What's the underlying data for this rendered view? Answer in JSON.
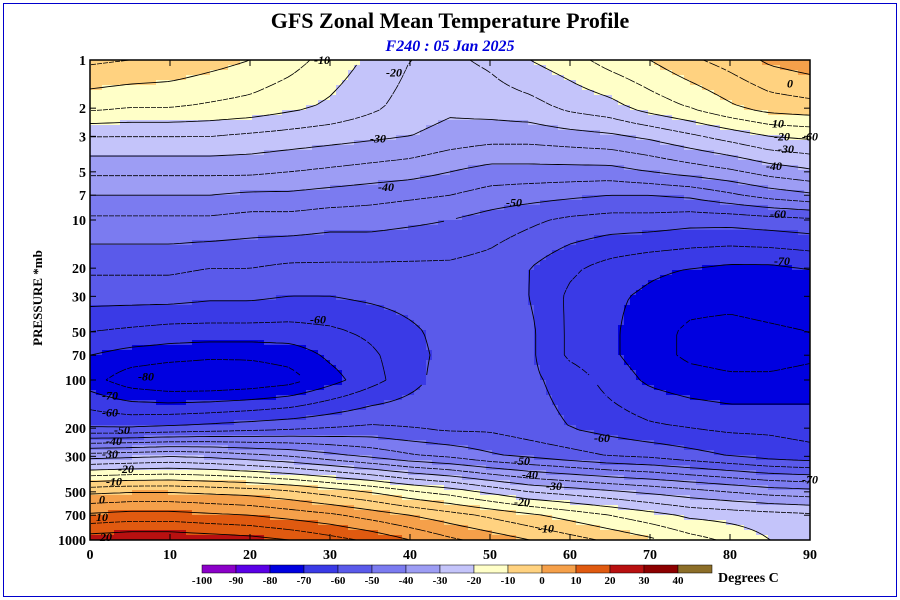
{
  "title": "GFS Zonal Mean Temperature Profile",
  "subtitle": "F240 : 05 Jan 2025",
  "colorbar": {
    "unit_label": "Degrees C",
    "ticks": [
      "-100",
      "-90",
      "-80",
      "-70",
      "-60",
      "-50",
      "-40",
      "-30",
      "-20",
      "-10",
      "0",
      "10",
      "20",
      "30",
      "40"
    ],
    "colors": [
      "#8b00c8",
      "#5a00e6",
      "#0000e0",
      "#3a3ae6",
      "#5a5aea",
      "#7b7bf0",
      "#9d9df4",
      "#c4c4fa",
      "#ffffc8",
      "#ffd280",
      "#f5a04a",
      "#e05a10",
      "#b81010",
      "#8c0000",
      "#8c6e28"
    ]
  },
  "chart_data": {
    "type": "heatmap",
    "title": "GFS Zonal Mean Temperature Profile",
    "subtitle": "F240 : 05 Jan 2025",
    "xlabel": "",
    "ylabel": "PRESSURE *mb",
    "xlim": [
      0,
      90
    ],
    "x_ticks": [
      0,
      10,
      20,
      30,
      40,
      50,
      60,
      70,
      80,
      90
    ],
    "y_scale": "log",
    "y_ticks": [
      1,
      2,
      3,
      5,
      7,
      10,
      20,
      30,
      50,
      70,
      100,
      200,
      300,
      500,
      700,
      1000
    ],
    "ylim": [
      1000,
      1
    ],
    "contour_interval": 10,
    "units": "Degrees C",
    "x": [
      0,
      5,
      10,
      15,
      20,
      25,
      30,
      35,
      40,
      45,
      50,
      55,
      60,
      65,
      70,
      75,
      80,
      85,
      90
    ],
    "y": [
      1,
      2,
      3,
      5,
      7,
      10,
      20,
      30,
      50,
      70,
      100,
      200,
      300,
      500,
      700,
      1000
    ],
    "z": [
      [
        -4,
        -5,
        -6,
        -8,
        -10,
        -13,
        -17,
        -21,
        -25,
        -26,
        -24,
        -20,
        -17,
        -13,
        -10,
        -6,
        -3,
        1,
        3
      ],
      [
        -14,
        -15,
        -15,
        -16,
        -17,
        -19,
        -21,
        -24,
        -27,
        -29,
        -28,
        -27,
        -24,
        -22,
        -18,
        -15,
        -11,
        -8,
        -7
      ],
      [
        -25,
        -25,
        -25,
        -25,
        -26,
        -27,
        -28,
        -29,
        -30,
        -32,
        -33,
        -33,
        -32,
        -31,
        -29,
        -26,
        -23,
        -20,
        -19
      ],
      [
        -34,
        -34,
        -34,
        -34,
        -34,
        -35,
        -36,
        -37,
        -38,
        -40,
        -42,
        -42,
        -42,
        -42,
        -40,
        -38,
        -36,
        -33,
        -31
      ],
      [
        -40,
        -40,
        -40,
        -40,
        -41,
        -41,
        -42,
        -43,
        -44,
        -45,
        -47,
        -48,
        -49,
        -50,
        -50,
        -49,
        -46,
        -43,
        -41
      ],
      [
        -46,
        -46,
        -46,
        -46,
        -47,
        -47,
        -48,
        -48,
        -49,
        -50,
        -52,
        -54,
        -56,
        -57,
        -57,
        -58,
        -58,
        -57,
        -56
      ],
      [
        -54,
        -54,
        -54,
        -55,
        -55,
        -56,
        -56,
        -56,
        -56,
        -56,
        -57,
        -60,
        -64,
        -67,
        -69,
        -70,
        -71,
        -71,
        -70
      ],
      [
        -58,
        -58,
        -58,
        -59,
        -59,
        -60,
        -60,
        -59,
        -58,
        -57,
        -58,
        -60,
        -66,
        -69,
        -71,
        -73,
        -73,
        -72,
        -71
      ],
      [
        -65,
        -66,
        -67,
        -67,
        -67,
        -67,
        -66,
        -64,
        -61,
        -58,
        -58,
        -59,
        -66,
        -69,
        -73,
        -76,
        -77,
        -76,
        -75
      ],
      [
        -70,
        -72,
        -73,
        -74,
        -74,
        -73,
        -69,
        -66,
        -62,
        -58,
        -57,
        -59,
        -66,
        -69,
        -73,
        -76,
        -77,
        -77,
        -76
      ],
      [
        -73,
        -78,
        -80,
        -80,
        -79,
        -77,
        -72,
        -67,
        -62,
        -57,
        -56,
        -59,
        -62,
        -67,
        -71,
        -73,
        -74,
        -74,
        -73
      ],
      [
        -60,
        -60,
        -59,
        -58,
        -57,
        -56,
        -55,
        -54,
        -55,
        -56,
        -56,
        -58,
        -60,
        -62,
        -64,
        -65,
        -66,
        -66,
        -67
      ],
      [
        -32,
        -31,
        -30,
        -31,
        -33,
        -35,
        -38,
        -41,
        -44,
        -46,
        -49,
        -51,
        -53,
        -55,
        -56,
        -58,
        -60,
        -62,
        -63
      ],
      [
        -1,
        0,
        0,
        -1,
        -2,
        -4,
        -7,
        -10,
        -14,
        -17,
        -21,
        -25,
        -27,
        -29,
        -31,
        -33,
        -35,
        -37,
        -38
      ],
      [
        11,
        12,
        12,
        11,
        10,
        8,
        6,
        3,
        0,
        -3,
        -6,
        -9,
        -12,
        -15,
        -18,
        -21,
        -22,
        -23,
        -24
      ],
      [
        23,
        24,
        24,
        23,
        22,
        20,
        17,
        14,
        10,
        6,
        3,
        0,
        -3,
        -6,
        -9,
        -13,
        -16,
        -20,
        -23
      ]
    ],
    "contour_labels": [
      {
        "text": "-10",
        "x": 29,
        "p": 1
      },
      {
        "text": "-20",
        "x": 38,
        "p": 1.2
      },
      {
        "text": "0",
        "x": 87.5,
        "p": 1.4
      },
      {
        "text": "10",
        "x": 86,
        "p": 2.5
      },
      {
        "text": "-20",
        "x": 86.5,
        "p": 3
      },
      {
        "text": "-30",
        "x": 36,
        "p": 3.1
      },
      {
        "text": "-30",
        "x": 87,
        "p": 3.6
      },
      {
        "text": "-60",
        "x": 90,
        "p": 3
      },
      {
        "text": "-40",
        "x": 85.5,
        "p": 4.6
      },
      {
        "text": "-40",
        "x": 37,
        "p": 6.2
      },
      {
        "text": "-50",
        "x": 53,
        "p": 7.8
      },
      {
        "text": "-60",
        "x": 86,
        "p": 9.2
      },
      {
        "text": "-70",
        "x": 86.5,
        "p": 18
      },
      {
        "text": "-60",
        "x": 28.5,
        "p": 42
      },
      {
        "text": "-80",
        "x": 7,
        "p": 95
      },
      {
        "text": "-70",
        "x": 2.5,
        "p": 125
      },
      {
        "text": "-60",
        "x": 2.5,
        "p": 160
      },
      {
        "text": "-50",
        "x": 4,
        "p": 205
      },
      {
        "text": "-40",
        "x": 3,
        "p": 240
      },
      {
        "text": "-30",
        "x": 2.5,
        "p": 290
      },
      {
        "text": "-20",
        "x": 4.5,
        "p": 360
      },
      {
        "text": "-10",
        "x": 3,
        "p": 430
      },
      {
        "text": "0",
        "x": 1.5,
        "p": 560
      },
      {
        "text": "10",
        "x": 1.5,
        "p": 720
      },
      {
        "text": "20",
        "x": 2,
        "p": 960
      },
      {
        "text": "-60",
        "x": 64,
        "p": 230
      },
      {
        "text": "-50",
        "x": 54,
        "p": 320
      },
      {
        "text": "-40",
        "x": 55,
        "p": 390
      },
      {
        "text": "-30",
        "x": 58,
        "p": 460
      },
      {
        "text": "-20",
        "x": 54,
        "p": 580
      },
      {
        "text": "-10",
        "x": 57,
        "p": 850
      },
      {
        "text": "-70",
        "x": 90,
        "p": 420
      }
    ]
  }
}
